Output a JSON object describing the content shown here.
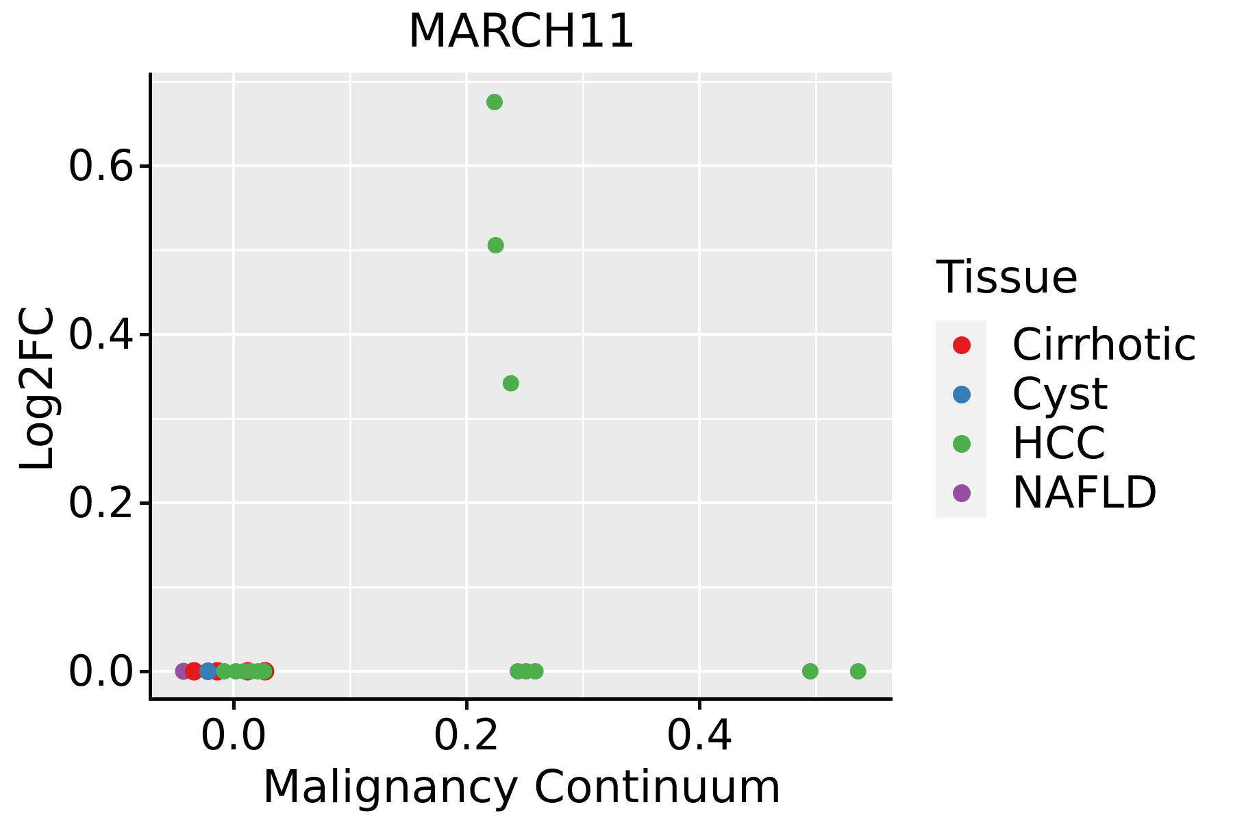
{
  "figure": {
    "title": "MARCH11",
    "x_axis": {
      "label": "Malignancy Continuum",
      "tick_labels": [
        "0.0",
        "0.2",
        "0.4"
      ],
      "tick_values": [
        0.0,
        0.2,
        0.4
      ],
      "minor_grid_values": [
        0.1,
        0.3,
        0.5
      ],
      "lim": [
        -0.07,
        0.565
      ]
    },
    "y_axis": {
      "label": "Log2FC",
      "tick_labels": [
        "0.0",
        "0.2",
        "0.4",
        "0.6"
      ],
      "tick_values": [
        0.0,
        0.2,
        0.4,
        0.6
      ],
      "minor_grid_values": [
        0.1,
        0.3,
        0.5,
        0.7
      ],
      "lim": [
        -0.0325,
        0.711
      ]
    },
    "legend": {
      "title": "Tissue",
      "items": [
        {
          "label": "Cirrhotic",
          "color": "#E41A1C"
        },
        {
          "label": "Cyst",
          "color": "#377EB8"
        },
        {
          "label": "HCC",
          "color": "#4DAF4A"
        },
        {
          "label": "NAFLD",
          "color": "#984EA3"
        }
      ]
    },
    "colors": {
      "panel_background": "#EBEBEB",
      "gridline": "#FFFFFF",
      "legend_key_background": "#F1F1F1",
      "text": "#000000"
    }
  },
  "chart_data": {
    "type": "scatter",
    "title": "MARCH11",
    "xlabel": "Malignancy Continuum",
    "ylabel": "Log2FC",
    "xlim": [
      -0.07,
      0.565
    ],
    "ylim": [
      -0.0325,
      0.711
    ],
    "grid": true,
    "legend_title": "Tissue",
    "legend_position": "right",
    "series": [
      {
        "name": "Cirrhotic",
        "color": "#E41A1C",
        "points": [
          [
            -0.034,
            0.0
          ],
          [
            -0.014,
            0.0
          ],
          [
            0.012,
            0.0
          ],
          [
            0.027,
            0.0
          ]
        ]
      },
      {
        "name": "Cyst",
        "color": "#377EB8",
        "points": [
          [
            -0.022,
            0.0
          ]
        ]
      },
      {
        "name": "HCC",
        "color": "#4DAF4A",
        "points": [
          [
            -0.008,
            0.0
          ],
          [
            0.002,
            0.0
          ],
          [
            0.009,
            0.0
          ],
          [
            0.015,
            0.0
          ],
          [
            0.021,
            0.0
          ],
          [
            0.026,
            0.0
          ],
          [
            0.224,
            0.676
          ],
          [
            0.225,
            0.506
          ],
          [
            0.238,
            0.342
          ],
          [
            0.244,
            0.0
          ],
          [
            0.251,
            0.0
          ],
          [
            0.259,
            0.0
          ],
          [
            0.495,
            0.0
          ],
          [
            0.536,
            0.0
          ]
        ]
      },
      {
        "name": "NAFLD",
        "color": "#984EA3",
        "points": [
          [
            -0.043,
            0.0
          ]
        ]
      }
    ]
  }
}
